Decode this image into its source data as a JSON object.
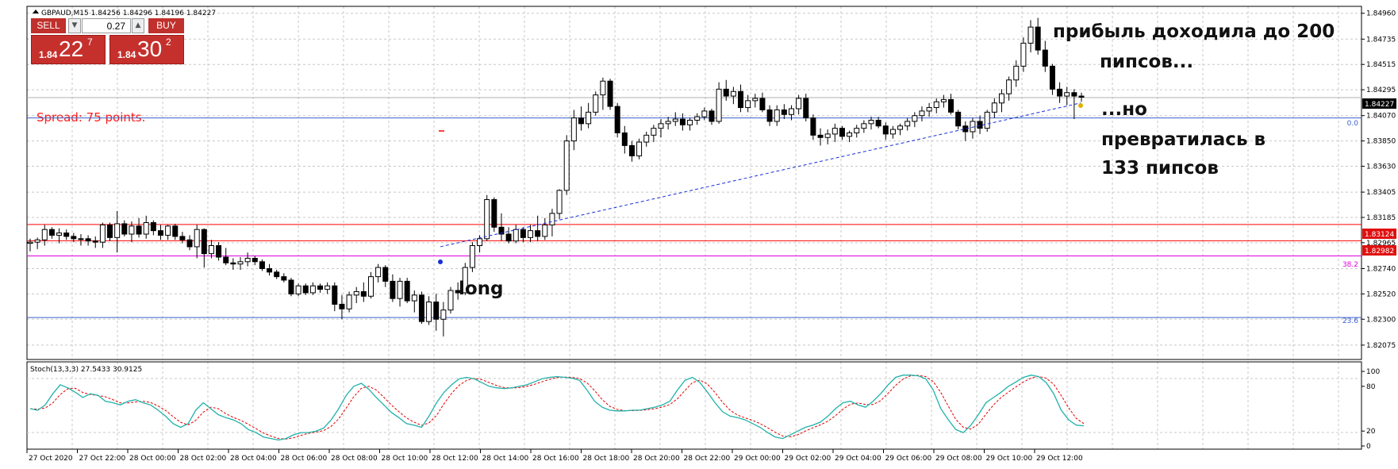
{
  "header": {
    "symbol_info": "GBPAUD,M15  1.84256 1.84296 1.84196 1.84227"
  },
  "trade_panel": {
    "sell_label": "SELL",
    "buy_label": "BUY",
    "lot_value": "0.27",
    "sell_price_small": "1.84",
    "sell_price_big": "22",
    "sell_price_sup": "7",
    "buy_price_small": "1.84",
    "buy_price_big": "30",
    "buy_price_sup": "2",
    "spin_down_icon": "triangle-down-icon",
    "spin_up_icon": "triangle-up-icon"
  },
  "spread_text": "Spread: 75 points.",
  "annotations": {
    "top_line1": "прибыль доходила до 200",
    "top_line2": "пипсов...",
    "mid_line1": "...но",
    "mid_line2": "превратилась в",
    "mid_line3": "133 пипсов",
    "long": "long"
  },
  "price_axis": {
    "labels": [
      "1.84960",
      "1.84735",
      "1.84515",
      "1.84295",
      "1.84070",
      "1.83850",
      "1.83630",
      "1.83405",
      "1.83185",
      "1.82965",
      "1.82740",
      "1.82520",
      "1.82300",
      "1.82075"
    ],
    "current_price": "1.84227",
    "level_red_1": "1.83124",
    "level_red_2": "1.82982"
  },
  "fibo_labels": {
    "f0": "0.0",
    "f382": "38.2",
    "f236": "23.6"
  },
  "colors": {
    "red_level": "#ff0000",
    "fibo_level": "#3a5fcd",
    "magenta_level": "#dd00dd",
    "trendline": "#1a2fd6",
    "stoch_main": "#20b2aa",
    "stoch_signal": "#e00000",
    "sell_buy": "#c5302d"
  },
  "stochastic": {
    "label": "Stoch(13,3,3) 27.5433 30.9125",
    "axis_labels": [
      "100",
      "80",
      "20",
      "0"
    ]
  },
  "time_axis": [
    "27 Oct 2020",
    "27 Oct 22:00",
    "28 Oct 00:00",
    "28 Oct 02:00",
    "28 Oct 04:00",
    "28 Oct 06:00",
    "28 Oct 08:00",
    "28 Oct 10:00",
    "28 Oct 12:00",
    "28 Oct 14:00",
    "28 Oct 16:00",
    "28 Oct 18:00",
    "28 Oct 20:00",
    "28 Oct 22:00",
    "29 Oct 00:00",
    "29 Oct 02:00",
    "29 Oct 04:00",
    "29 Oct 06:00",
    "29 Oct 08:00",
    "29 Oct 10:00",
    "29 Oct 12:00"
  ],
  "chart_data": {
    "type": "candlestick",
    "symbol": "GBPAUD",
    "timeframe": "M15",
    "ylim": [
      1.8195,
      1.8502
    ],
    "levels": [
      {
        "name": "red_upper",
        "price": 1.83124
      },
      {
        "name": "red_lower",
        "price": 1.82982
      },
      {
        "name": "fibo_0.0",
        "price": 1.8405
      },
      {
        "name": "fibo_38.2",
        "price": 1.8285
      },
      {
        "name": "fibo_23.6",
        "price": 1.82315
      },
      {
        "name": "bid",
        "price": 1.84227
      }
    ],
    "trendline": [
      [
        1.8293
      ],
      [
        1.8418
      ]
    ],
    "candles_ohlc": [
      [
        1.8296,
        1.83,
        1.8289,
        1.8297
      ],
      [
        1.8297,
        1.8301,
        1.8291,
        1.8299
      ],
      [
        1.8299,
        1.8312,
        1.8294,
        1.8308
      ],
      [
        1.8308,
        1.831,
        1.83,
        1.8303
      ],
      [
        1.8303,
        1.8309,
        1.8296,
        1.8305
      ],
      [
        1.8305,
        1.8308,
        1.8299,
        1.8302
      ],
      [
        1.8302,
        1.8305,
        1.8297,
        1.83
      ],
      [
        1.83,
        1.8304,
        1.8294,
        1.83
      ],
      [
        1.83,
        1.8303,
        1.8294,
        1.8298
      ],
      [
        1.8298,
        1.8302,
        1.8292,
        1.8297
      ],
      [
        1.8297,
        1.8314,
        1.8292,
        1.8312
      ],
      [
        1.8312,
        1.8314,
        1.8298,
        1.8301
      ],
      [
        1.8301,
        1.8324,
        1.8288,
        1.8313
      ],
      [
        1.8313,
        1.8316,
        1.8302,
        1.8304
      ],
      [
        1.8304,
        1.8315,
        1.8297,
        1.8311
      ],
      [
        1.8311,
        1.8318,
        1.8301,
        1.8304
      ],
      [
        1.8304,
        1.832,
        1.83,
        1.8314
      ],
      [
        1.8314,
        1.8316,
        1.8303,
        1.8307
      ],
      [
        1.8307,
        1.8312,
        1.8299,
        1.8303
      ],
      [
        1.8303,
        1.8312,
        1.8299,
        1.8311
      ],
      [
        1.8311,
        1.8313,
        1.8299,
        1.8302
      ],
      [
        1.8302,
        1.8306,
        1.8296,
        1.8299
      ],
      [
        1.8299,
        1.8303,
        1.829,
        1.8293
      ],
      [
        1.8293,
        1.8312,
        1.8283,
        1.8308
      ],
      [
        1.8308,
        1.8309,
        1.8275,
        1.8287
      ],
      [
        1.8287,
        1.8299,
        1.8283,
        1.8294
      ],
      [
        1.8294,
        1.8297,
        1.8281,
        1.8284
      ],
      [
        1.8284,
        1.8292,
        1.8277,
        1.8279
      ],
      [
        1.8279,
        1.8283,
        1.8273,
        1.8278
      ],
      [
        1.8278,
        1.8284,
        1.8273,
        1.828
      ],
      [
        1.828,
        1.8288,
        1.8276,
        1.8283
      ],
      [
        1.8283,
        1.8285,
        1.8277,
        1.828
      ],
      [
        1.828,
        1.8282,
        1.8272,
        1.8274
      ],
      [
        1.8274,
        1.8278,
        1.8268,
        1.8271
      ],
      [
        1.8271,
        1.8273,
        1.8265,
        1.8267
      ],
      [
        1.8267,
        1.827,
        1.8262,
        1.8264
      ],
      [
        1.8264,
        1.8266,
        1.825,
        1.8252
      ],
      [
        1.8252,
        1.8261,
        1.825,
        1.8259
      ],
      [
        1.8259,
        1.8261,
        1.8251,
        1.8253
      ],
      [
        1.8253,
        1.8262,
        1.8251,
        1.8259
      ],
      [
        1.8259,
        1.8261,
        1.8253,
        1.8256
      ],
      [
        1.8256,
        1.8262,
        1.8252,
        1.8259
      ],
      [
        1.8259,
        1.8262,
        1.8237,
        1.8243
      ],
      [
        1.8243,
        1.8251,
        1.823,
        1.8239
      ],
      [
        1.8239,
        1.8254,
        1.8236,
        1.8251
      ],
      [
        1.8251,
        1.8258,
        1.8244,
        1.8254
      ],
      [
        1.8254,
        1.8262,
        1.8245,
        1.825
      ],
      [
        1.825,
        1.8271,
        1.8248,
        1.8267
      ],
      [
        1.8267,
        1.8278,
        1.8262,
        1.8275
      ],
      [
        1.8275,
        1.8277,
        1.8258,
        1.8263
      ],
      [
        1.8263,
        1.8269,
        1.8245,
        1.8248
      ],
      [
        1.8248,
        1.8266,
        1.8241,
        1.8263
      ],
      [
        1.8263,
        1.8266,
        1.8244,
        1.8246
      ],
      [
        1.8246,
        1.8255,
        1.8236,
        1.8251
      ],
      [
        1.8251,
        1.8254,
        1.8226,
        1.8228
      ],
      [
        1.8228,
        1.825,
        1.8225,
        1.8245
      ],
      [
        1.8245,
        1.8252,
        1.822,
        1.823
      ],
      [
        1.823,
        1.8245,
        1.8215,
        1.8238
      ],
      [
        1.8238,
        1.8258,
        1.8235,
        1.8255
      ],
      [
        1.8255,
        1.8262,
        1.8247,
        1.8253
      ],
      [
        1.8253,
        1.8279,
        1.8251,
        1.8275
      ],
      [
        1.8275,
        1.8297,
        1.8271,
        1.8294
      ],
      [
        1.8294,
        1.8303,
        1.8288,
        1.83
      ],
      [
        1.83,
        1.8338,
        1.8298,
        1.8334
      ],
      [
        1.8334,
        1.8336,
        1.8306,
        1.831
      ],
      [
        1.831,
        1.8322,
        1.8298,
        1.8304
      ],
      [
        1.8304,
        1.831,
        1.8296,
        1.8298
      ],
      [
        1.8298,
        1.8312,
        1.8296,
        1.8308
      ],
      [
        1.8308,
        1.831,
        1.8297,
        1.8301
      ],
      [
        1.8301,
        1.8312,
        1.8297,
        1.8307
      ],
      [
        1.8307,
        1.832,
        1.8298,
        1.8302
      ],
      [
        1.8302,
        1.8318,
        1.8299,
        1.8312
      ],
      [
        1.8312,
        1.8326,
        1.8302,
        1.8322
      ],
      [
        1.8322,
        1.8343,
        1.8317,
        1.8342
      ],
      [
        1.8342,
        1.839,
        1.8338,
        1.8385
      ],
      [
        1.8385,
        1.8412,
        1.8377,
        1.8405
      ],
      [
        1.8405,
        1.8415,
        1.8394,
        1.84
      ],
      [
        1.84,
        1.8418,
        1.8396,
        1.841
      ],
      [
        1.841,
        1.8428,
        1.8407,
        1.8425
      ],
      [
        1.8425,
        1.844,
        1.8412,
        1.8437
      ],
      [
        1.8437,
        1.8439,
        1.8412,
        1.8415
      ],
      [
        1.8415,
        1.8418,
        1.8388,
        1.8392
      ],
      [
        1.8392,
        1.8398,
        1.8374,
        1.8381
      ],
      [
        1.8381,
        1.8385,
        1.8367,
        1.8372
      ],
      [
        1.8372,
        1.8387,
        1.8369,
        1.8384
      ],
      [
        1.8384,
        1.8393,
        1.838,
        1.839
      ],
      [
        1.839,
        1.8399,
        1.8384,
        1.8396
      ],
      [
        1.8396,
        1.8404,
        1.8388,
        1.84
      ],
      [
        1.84,
        1.8406,
        1.8395,
        1.8402
      ],
      [
        1.8402,
        1.841,
        1.8398,
        1.8404
      ],
      [
        1.8404,
        1.8409,
        1.8394,
        1.8399
      ],
      [
        1.8399,
        1.8405,
        1.8394,
        1.8403
      ],
      [
        1.8403,
        1.8409,
        1.8399,
        1.8406
      ],
      [
        1.8406,
        1.8414,
        1.8403,
        1.8411
      ],
      [
        1.8411,
        1.8413,
        1.8399,
        1.8402
      ],
      [
        1.8402,
        1.8436,
        1.84,
        1.843
      ],
      [
        1.843,
        1.8438,
        1.842,
        1.8424
      ],
      [
        1.8424,
        1.8432,
        1.8417,
        1.8428
      ],
      [
        1.8428,
        1.8434,
        1.841,
        1.8414
      ],
      [
        1.8414,
        1.8425,
        1.841,
        1.842
      ],
      [
        1.842,
        1.8426,
        1.8414,
        1.8422
      ],
      [
        1.8422,
        1.8427,
        1.841,
        1.8412
      ],
      [
        1.8412,
        1.8416,
        1.8398,
        1.8402
      ],
      [
        1.8402,
        1.8416,
        1.8398,
        1.8412
      ],
      [
        1.8412,
        1.8417,
        1.8404,
        1.8408
      ],
      [
        1.8408,
        1.8416,
        1.8403,
        1.8413
      ],
      [
        1.8413,
        1.8425,
        1.8408,
        1.8422
      ],
      [
        1.8422,
        1.8426,
        1.8402,
        1.8405
      ],
      [
        1.8405,
        1.8408,
        1.8386,
        1.839
      ],
      [
        1.839,
        1.8396,
        1.8381,
        1.8388
      ],
      [
        1.8388,
        1.8395,
        1.8382,
        1.8391
      ],
      [
        1.8391,
        1.84,
        1.8384,
        1.8396
      ],
      [
        1.8396,
        1.8398,
        1.8386,
        1.8389
      ],
      [
        1.8389,
        1.8394,
        1.8384,
        1.8392
      ],
      [
        1.8392,
        1.8399,
        1.8388,
        1.8396
      ],
      [
        1.8396,
        1.8403,
        1.8392,
        1.84
      ],
      [
        1.84,
        1.8406,
        1.8395,
        1.8403
      ],
      [
        1.8403,
        1.8406,
        1.8396,
        1.8398
      ],
      [
        1.8398,
        1.8401,
        1.8386,
        1.8391
      ],
      [
        1.8391,
        1.8398,
        1.8387,
        1.8395
      ],
      [
        1.8395,
        1.84,
        1.839,
        1.8398
      ],
      [
        1.8398,
        1.8405,
        1.8394,
        1.8402
      ],
      [
        1.8402,
        1.841,
        1.8397,
        1.8407
      ],
      [
        1.8407,
        1.8415,
        1.8402,
        1.8411
      ],
      [
        1.8411,
        1.8418,
        1.8406,
        1.8414
      ],
      [
        1.8414,
        1.8422,
        1.8409,
        1.8419
      ],
      [
        1.8419,
        1.8425,
        1.8414,
        1.8421
      ],
      [
        1.8421,
        1.8426,
        1.8408,
        1.841
      ],
      [
        1.841,
        1.8412,
        1.8395,
        1.8398
      ],
      [
        1.8398,
        1.8402,
        1.8385,
        1.8393
      ],
      [
        1.8393,
        1.8405,
        1.8387,
        1.8402
      ],
      [
        1.8402,
        1.8407,
        1.8391,
        1.8396
      ],
      [
        1.8396,
        1.8412,
        1.8393,
        1.841
      ],
      [
        1.841,
        1.8422,
        1.8405,
        1.8418
      ],
      [
        1.8418,
        1.843,
        1.841,
        1.8426
      ],
      [
        1.8426,
        1.8441,
        1.842,
        1.8438
      ],
      [
        1.8438,
        1.8455,
        1.8432,
        1.845
      ],
      [
        1.845,
        1.8475,
        1.8445,
        1.847
      ],
      [
        1.847,
        1.849,
        1.8462,
        1.8484
      ],
      [
        1.8484,
        1.8492,
        1.846,
        1.8464
      ],
      [
        1.8464,
        1.8472,
        1.8445,
        1.845
      ],
      [
        1.845,
        1.8452,
        1.8425,
        1.843
      ],
      [
        1.843,
        1.8436,
        1.8418,
        1.8424
      ],
      [
        1.8424,
        1.8432,
        1.8416,
        1.8427
      ],
      [
        1.8427,
        1.843,
        1.8404,
        1.8424
      ],
      [
        1.8424,
        1.8427,
        1.8419,
        1.8423
      ]
    ],
    "stoch_main": [
      50,
      48,
      55,
      70,
      82,
      78,
      72,
      65,
      70,
      68,
      60,
      58,
      55,
      60,
      62,
      58,
      55,
      48,
      40,
      30,
      25,
      30,
      48,
      58,
      50,
      42,
      38,
      35,
      30,
      22,
      18,
      12,
      10,
      8,
      10,
      15,
      18,
      18,
      20,
      24,
      35,
      50,
      68,
      80,
      84,
      76,
      65,
      55,
      45,
      38,
      30,
      28,
      25,
      40,
      58,
      72,
      82,
      90,
      92,
      90,
      85,
      80,
      78,
      77,
      78,
      80,
      82,
      86,
      90,
      92,
      93,
      92,
      91,
      88,
      75,
      60,
      52,
      48,
      47,
      47,
      48,
      48,
      50,
      52,
      55,
      60,
      75,
      88,
      92,
      85,
      72,
      58,
      46,
      40,
      38,
      35,
      30,
      25,
      18,
      12,
      10,
      15,
      20,
      25,
      28,
      32,
      40,
      50,
      58,
      60,
      55,
      52,
      60,
      70,
      82,
      92,
      95,
      95,
      94,
      90,
      75,
      50,
      35,
      22,
      18,
      28,
      42,
      58,
      65,
      72,
      80,
      86,
      92,
      95,
      93,
      85,
      70,
      48,
      35,
      28,
      27
    ]
  }
}
